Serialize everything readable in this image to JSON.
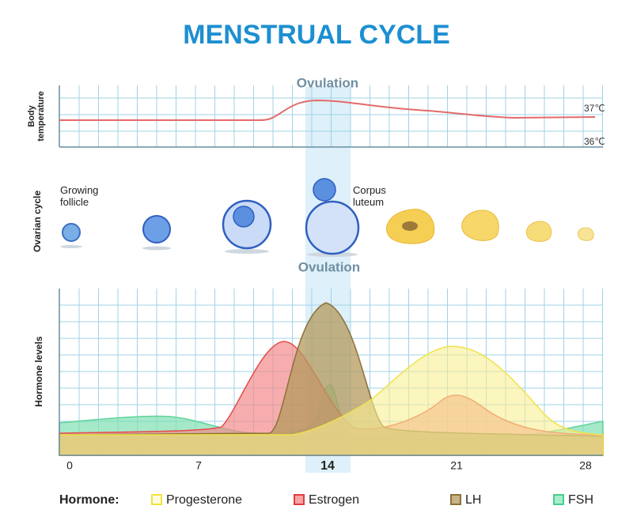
{
  "header": {
    "title": "MENSTRUAL CYCLE"
  },
  "temperature_panel": {
    "axis_label": "Body temperature",
    "ovulation_label": "Ovulation",
    "ticks": [
      "37℃",
      "36℃"
    ]
  },
  "ovarian_panel": {
    "axis_label": "Ovarian cycle",
    "labels": [
      "Growing follicle",
      "Corpus luteum"
    ]
  },
  "hormone_panel": {
    "axis_label": "Hormone levels",
    "ovulation_label": "Ovulation",
    "day_ticks": [
      "0",
      "7",
      "14",
      "21",
      "28"
    ]
  },
  "legend": {
    "title": "Hormone:",
    "items": [
      "Progesterone",
      "Estrogen",
      "LH",
      "FSH"
    ]
  }
}
